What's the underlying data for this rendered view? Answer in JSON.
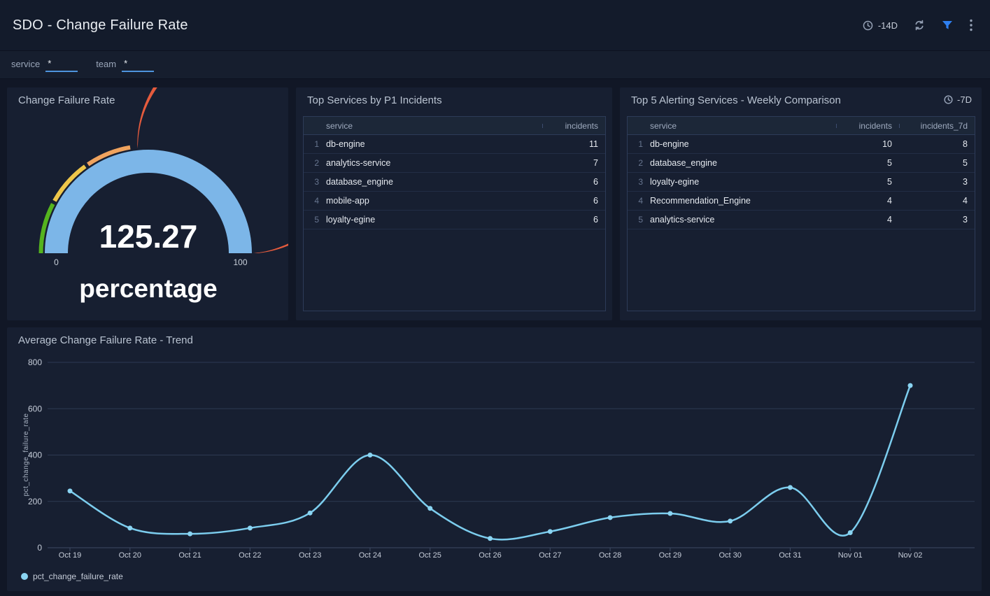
{
  "header": {
    "title": "SDO - Change Failure Rate",
    "time_range": "-14D"
  },
  "toolbar": {
    "icons": [
      "clock-icon",
      "refresh-icon",
      "filter-icon",
      "kebab-menu-icon"
    ],
    "filter_accent_color": "#2e7ff0",
    "icon_color": "#95a1b5"
  },
  "filter_bar": {
    "filters": [
      {
        "label": "service",
        "value": "*"
      },
      {
        "label": "team",
        "value": "*"
      }
    ],
    "underline_color": "#4e94dd"
  },
  "panels": {
    "p1_table": {
      "title": "Top Services by P1 Incidents",
      "columns": [
        "service",
        "incidents"
      ],
      "rows": [
        [
          "1",
          "db-engine",
          "11"
        ],
        [
          "2",
          "analytics-service",
          "7"
        ],
        [
          "3",
          "database_engine",
          "6"
        ],
        [
          "4",
          "mobile-app",
          "6"
        ],
        [
          "5",
          "loyalty-egine",
          "6"
        ]
      ]
    },
    "weekly_table": {
      "title": "Top 5 Alerting Services - Weekly Comparison",
      "time_range": "-7D",
      "columns": [
        "service",
        "incidents",
        "incidents_7d"
      ],
      "rows": [
        [
          "1",
          "db-engine",
          "10",
          "8"
        ],
        [
          "2",
          "database_engine",
          "5",
          "5"
        ],
        [
          "3",
          "loyalty-egine",
          "5",
          "3"
        ],
        [
          "4",
          "Recommendation_Engine",
          "4",
          "4"
        ],
        [
          "5",
          "analytics-service",
          "4",
          "3"
        ]
      ]
    }
  },
  "chart_data": [
    {
      "type": "gauge",
      "title": "Change Failure Rate",
      "value": "125.27",
      "min": "0",
      "max": "100",
      "unit_label": "percentage",
      "bar_color": "#7cb6e8",
      "band_segments": [
        {
          "color": "#55b41e",
          "from": 0,
          "to": 0.152
        },
        {
          "color": "#eec64a",
          "from": 0.162,
          "to": 0.3
        },
        {
          "color": "#f0a35e",
          "from": 0.31,
          "to": 0.446
        },
        {
          "color": "#e55b3d",
          "from": 0.468,
          "to": 1.0
        }
      ]
    },
    {
      "type": "line",
      "title": "Average Change Failure Rate - Trend",
      "x": [
        "Oct 19",
        "Oct 20",
        "Oct 21",
        "Oct 22",
        "Oct 23",
        "Oct 24",
        "Oct 25",
        "Oct 26",
        "Oct 27",
        "Oct 28",
        "Oct 29",
        "Oct 30",
        "Oct 31",
        "Nov 01",
        "Nov 02"
      ],
      "series": [
        {
          "name": "pct_change_failure_rate",
          "color": "#7ccdee",
          "marker_color": "#8ad4f2",
          "values": [
            245,
            85,
            60,
            85,
            150,
            400,
            170,
            40,
            70,
            130,
            148,
            115,
            260,
            65,
            700
          ]
        }
      ],
      "xlabel": "",
      "ylabel": "pct_change_failure_rate",
      "ylim": [
        0,
        800
      ],
      "yticks": [
        0,
        200,
        400,
        600,
        800
      ],
      "grid": true,
      "legend_position": "bottom-left"
    }
  ]
}
